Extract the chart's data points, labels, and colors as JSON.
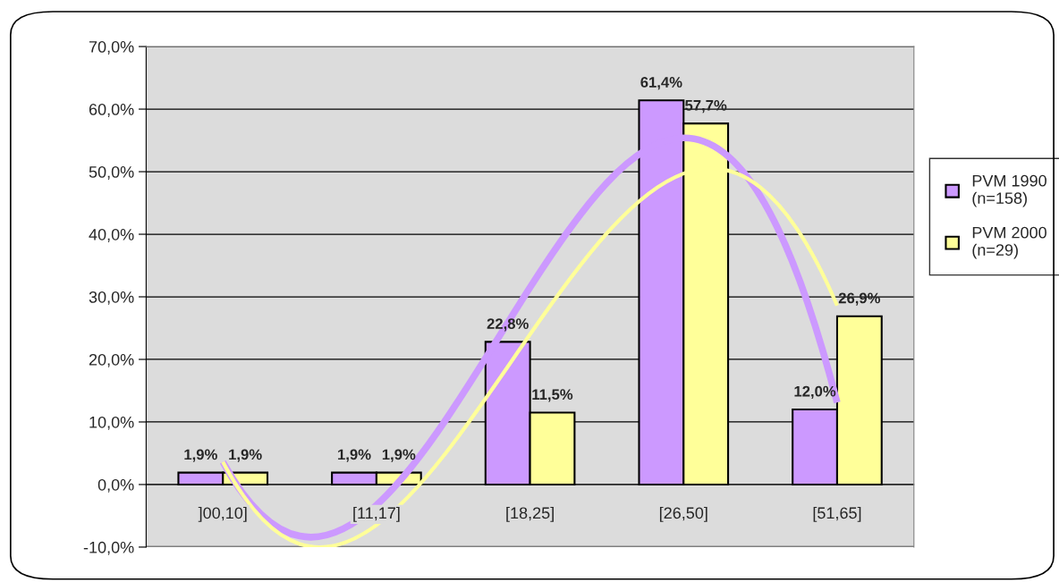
{
  "chart_data": {
    "type": "bar",
    "categories": [
      "]00,10]",
      "[11,17]",
      "[18,25]",
      "[26,50]",
      "[51,65]"
    ],
    "series": [
      {
        "name": "PVM 1990\n(n=158)",
        "color": "#cc99ff",
        "values": [
          1.9,
          1.9,
          22.8,
          61.4,
          12.0
        ],
        "value_labels": [
          "1,9%",
          "1,9%",
          "22,8%",
          "61,4%",
          "12,0%"
        ]
      },
      {
        "name": "PVM 2000\n(n=29)",
        "color": "#ffff99",
        "values": [
          1.9,
          1.9,
          11.5,
          57.7,
          26.9
        ],
        "value_labels": [
          "1,9%",
          "1,9%",
          "11,5%",
          "57,7%",
          "26,9%"
        ]
      },
      {
        "type": "line",
        "color": "#cc99ff",
        "values": [
          3.6,
          -3.3,
          31.5,
          55.4,
          13.1
        ]
      },
      {
        "type": "line",
        "color": "#ffff99",
        "values": [
          3.6,
          -6.5,
          24,
          49.7,
          28.6
        ]
      }
    ],
    "ylim": [
      -10,
      70
    ],
    "yticks": [
      {
        "value": -10,
        "label": "-10,0%"
      },
      {
        "value": 0,
        "label": "0,0%"
      },
      {
        "value": 10,
        "label": "10,0%"
      },
      {
        "value": 20,
        "label": "20,0%"
      },
      {
        "value": 30,
        "label": "30,0%"
      },
      {
        "value": 40,
        "label": "40,0%"
      },
      {
        "value": 50,
        "label": "50,0%"
      },
      {
        "value": 60,
        "label": "60,0%"
      },
      {
        "value": 70,
        "label": "70,0%"
      }
    ],
    "grid": "y",
    "legend": "right"
  }
}
